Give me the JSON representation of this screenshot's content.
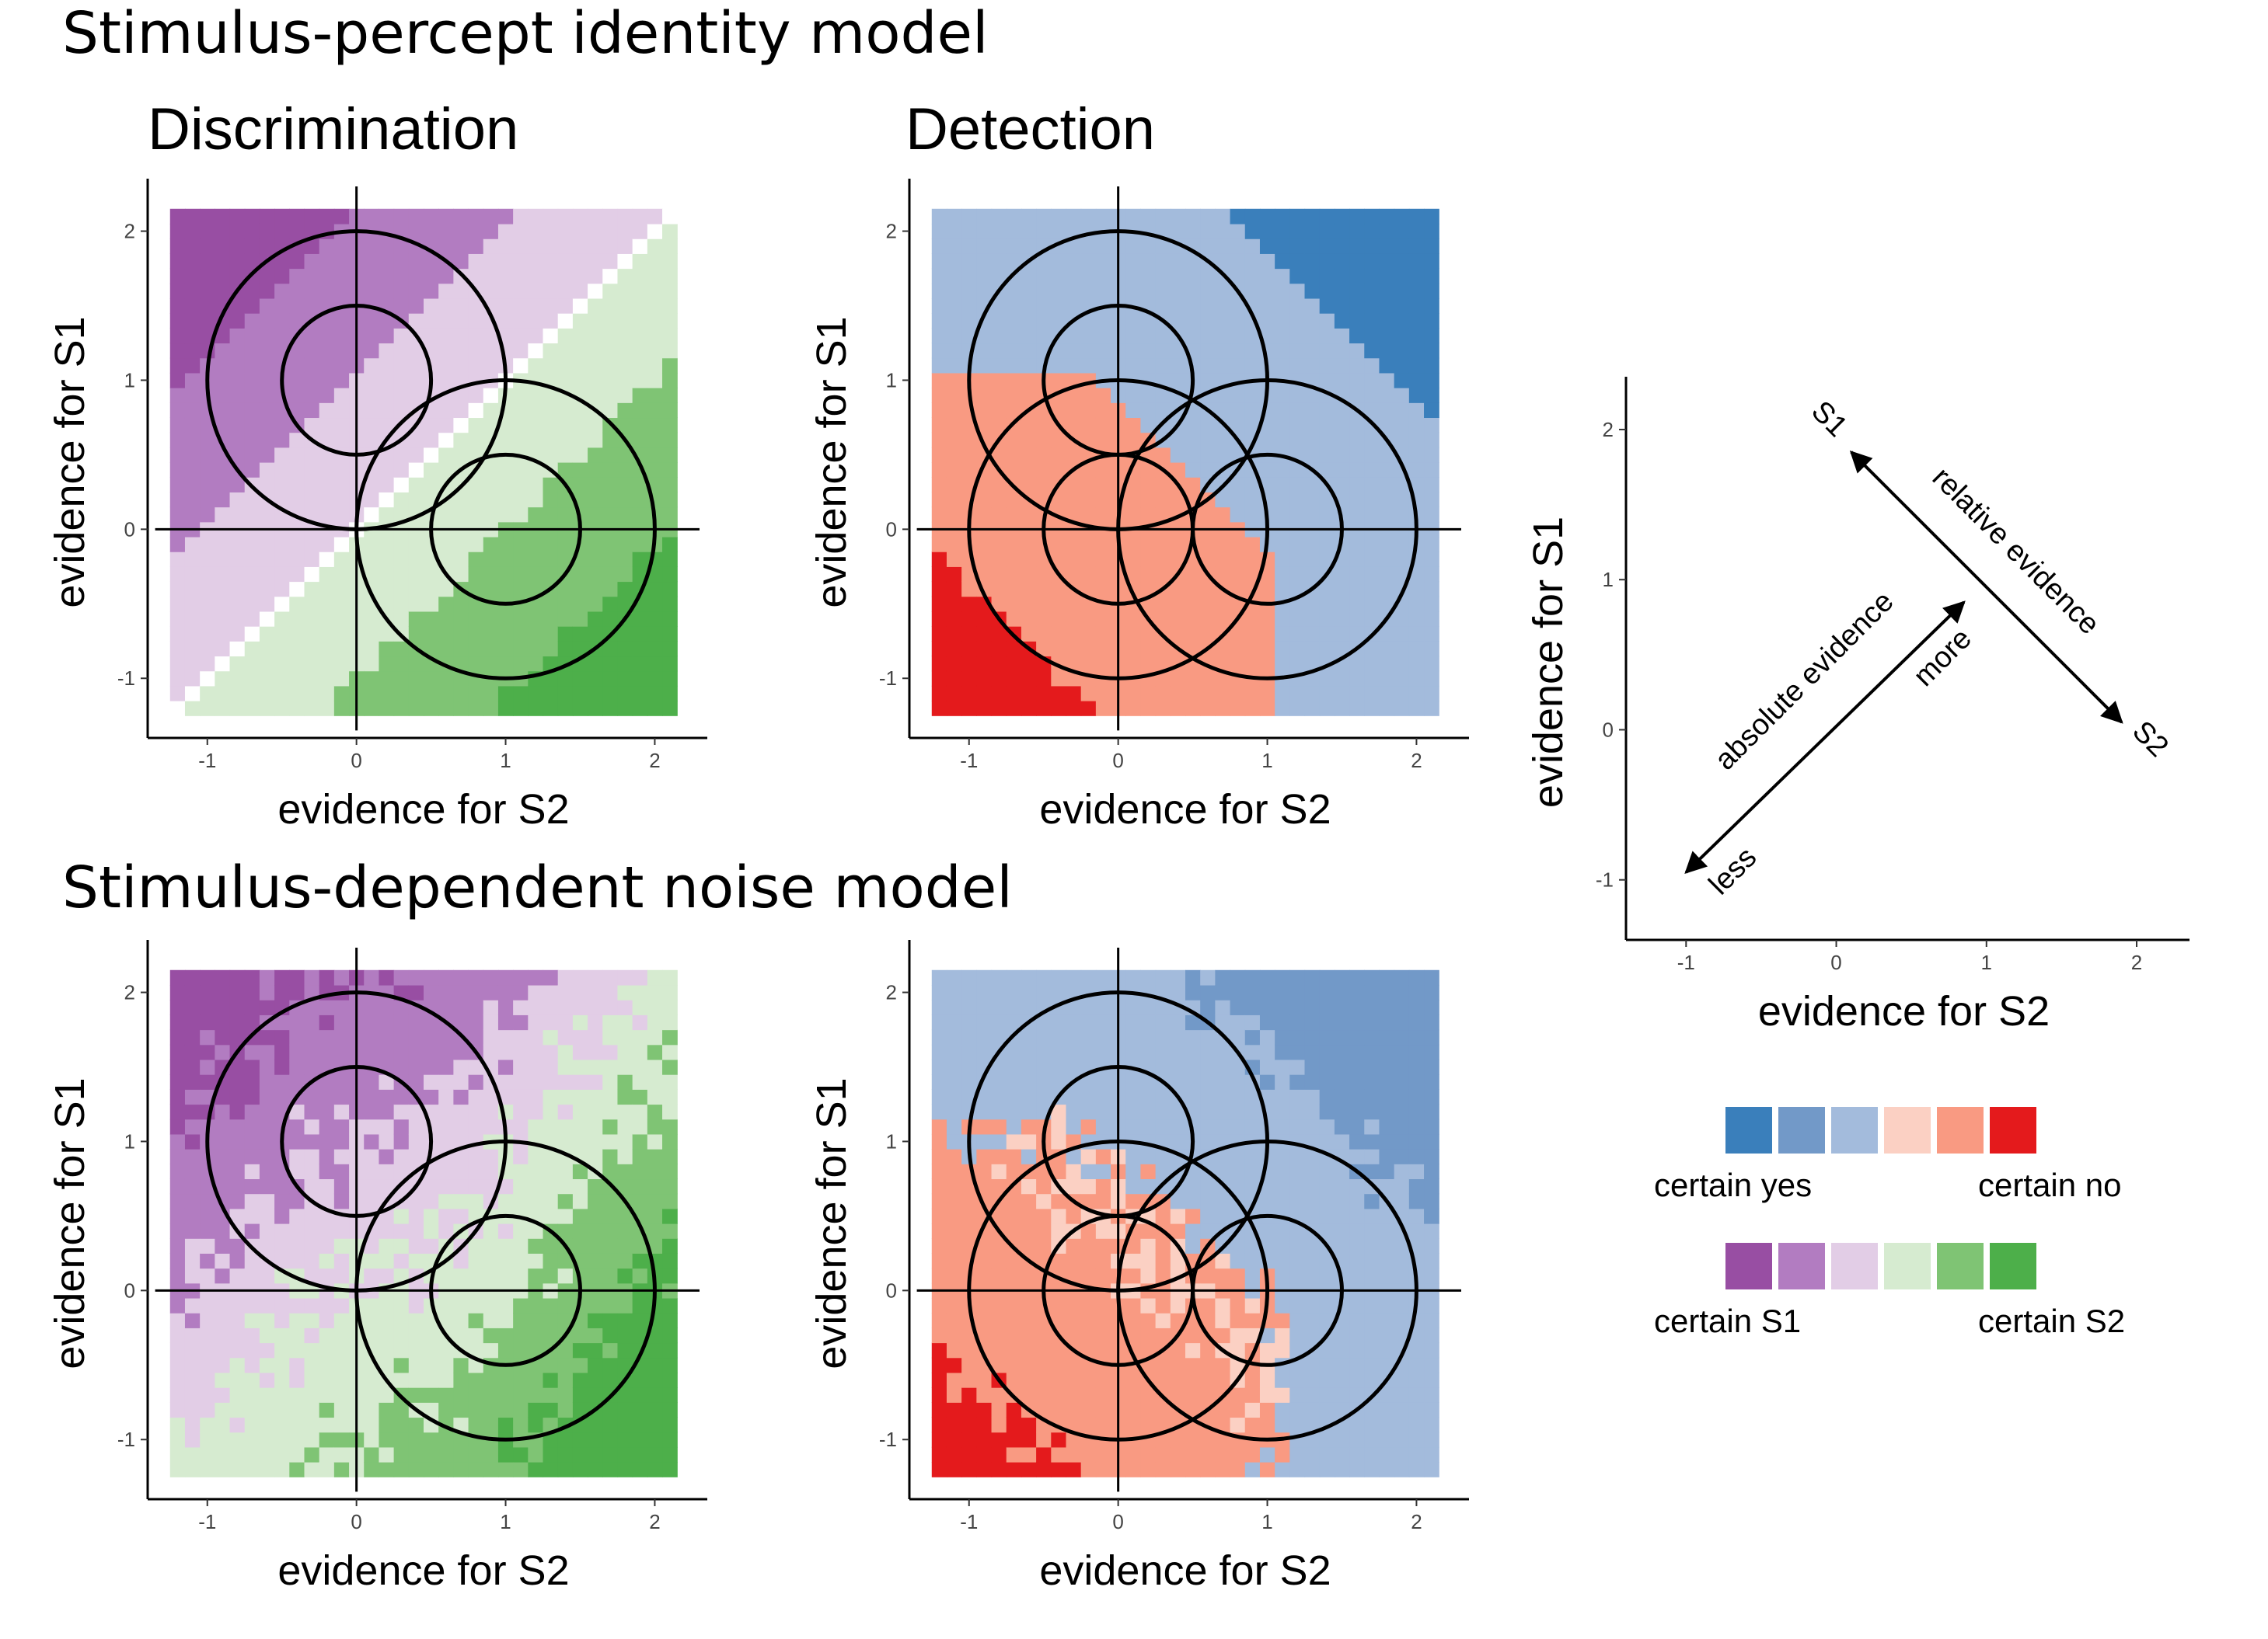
{
  "titles": {
    "model1": "Stimulus-percept identity model",
    "model2": "Stimulus-dependent noise model",
    "discrimination": "Discrimination",
    "detection": "Detection"
  },
  "axes": {
    "xlabel": "evidence for S2",
    "ylabel": "evidence for S1",
    "xticks": [
      "-1",
      "0",
      "1",
      "2"
    ],
    "yticks": [
      "-1",
      "0",
      "1",
      "2"
    ],
    "xlim": [
      -1.4,
      2.3
    ],
    "ylim": [
      -1.4,
      2.3
    ]
  },
  "schematic": {
    "label_s1": "S1",
    "label_s2": "S2",
    "relative": "relative evidence",
    "absolute": "absolute evidence",
    "more": "more",
    "less": "less"
  },
  "legend": {
    "detection_colors": [
      "#3a7fbb",
      "#7299c8",
      "#a3bbdc",
      "#fbd0c3",
      "#f99a82",
      "#e41a1c"
    ],
    "discrimination_colors": [
      "#984ea3",
      "#b27cc1",
      "#e2cde6",
      "#d6ebd0",
      "#7fc474",
      "#4daf4a"
    ],
    "certain_yes": "certain yes",
    "certain_no": "certain no",
    "certain_s1": "certain S1",
    "certain_s2": "certain S2"
  },
  "chart_data": [
    {
      "type": "heatmap",
      "panel": "identity-discrimination",
      "title": "Discrimination",
      "xlabel": "evidence for S2",
      "ylabel": "evidence for S1",
      "xlim": [
        -1.4,
        2.3
      ],
      "ylim": [
        -1.4,
        2.3
      ],
      "grid_extent": {
        "x": [
          -1.25,
          2.15
        ],
        "y": [
          -1.25,
          2.15
        ]
      },
      "circles": [
        {
          "center": [
            0,
            1
          ],
          "radii": [
            0.5,
            1.0
          ]
        },
        {
          "center": [
            1,
            0
          ],
          "radii": [
            0.5,
            1.0
          ]
        }
      ],
      "color_scale": [
        "#984ea3",
        "#b27cc1",
        "#e2cde6",
        "#d6ebd0",
        "#7fc474",
        "#4daf4a"
      ]
    },
    {
      "type": "heatmap",
      "panel": "identity-detection",
      "title": "Detection",
      "xlabel": "evidence for S2",
      "ylabel": "evidence for S1",
      "xlim": [
        -1.4,
        2.3
      ],
      "ylim": [
        -1.4,
        2.3
      ],
      "grid_extent": {
        "x": [
          -1.25,
          2.15
        ],
        "y": [
          -1.25,
          2.15
        ]
      },
      "circles": [
        {
          "center": [
            0,
            1
          ],
          "radii": [
            0.5,
            1.0
          ]
        },
        {
          "center": [
            1,
            0
          ],
          "radii": [
            0.5,
            1.0
          ]
        },
        {
          "center": [
            0,
            0
          ],
          "radii": [
            0.5,
            1.0
          ]
        }
      ],
      "color_scale": [
        "#3a7fbb",
        "#7299c8",
        "#a3bbdc",
        "#fbd0c3",
        "#f99a82",
        "#e41a1c"
      ]
    },
    {
      "type": "heatmap",
      "panel": "noise-discrimination",
      "xlabel": "evidence for S2",
      "ylabel": "evidence for S1",
      "xlim": [
        -1.4,
        2.3
      ],
      "ylim": [
        -1.4,
        2.3
      ],
      "grid_extent": {
        "x": [
          -1.25,
          2.15
        ],
        "y": [
          -1.25,
          2.15
        ]
      },
      "circles": [
        {
          "center": [
            0,
            1
          ],
          "radii": [
            0.5,
            1.0
          ]
        },
        {
          "center": [
            1,
            0
          ],
          "radii": [
            0.5,
            1.0
          ]
        }
      ],
      "color_scale": [
        "#984ea3",
        "#b27cc1",
        "#e2cde6",
        "#d6ebd0",
        "#7fc474",
        "#4daf4a"
      ]
    },
    {
      "type": "heatmap",
      "panel": "noise-detection",
      "xlabel": "evidence for S2",
      "ylabel": "evidence for S1",
      "xlim": [
        -1.4,
        2.3
      ],
      "ylim": [
        -1.4,
        2.3
      ],
      "grid_extent": {
        "x": [
          -1.25,
          2.15
        ],
        "y": [
          -1.25,
          2.15
        ]
      },
      "circles": [
        {
          "center": [
            0,
            1
          ],
          "radii": [
            0.5,
            1.0
          ]
        },
        {
          "center": [
            1,
            0
          ],
          "radii": [
            0.5,
            1.0
          ]
        },
        {
          "center": [
            0,
            0
          ],
          "radii": [
            0.5,
            1.0
          ]
        }
      ],
      "color_scale": [
        "#3a7fbb",
        "#7299c8",
        "#a3bbdc",
        "#fbd0c3",
        "#f99a82",
        "#e41a1c"
      ]
    },
    {
      "type": "line",
      "panel": "schematic",
      "xlabel": "evidence for S2",
      "ylabel": "evidence for S1",
      "xlim": [
        -1.4,
        2.3
      ],
      "ylim": [
        -1.4,
        2.3
      ],
      "arrows": [
        {
          "name": "relative evidence",
          "from": [
            0.1,
            1.85
          ],
          "to": [
            1.9,
            0.05
          ]
        },
        {
          "name": "absolute evidence",
          "from": [
            -1.0,
            -0.95
          ],
          "to": [
            0.85,
            0.85
          ]
        }
      ]
    }
  ]
}
